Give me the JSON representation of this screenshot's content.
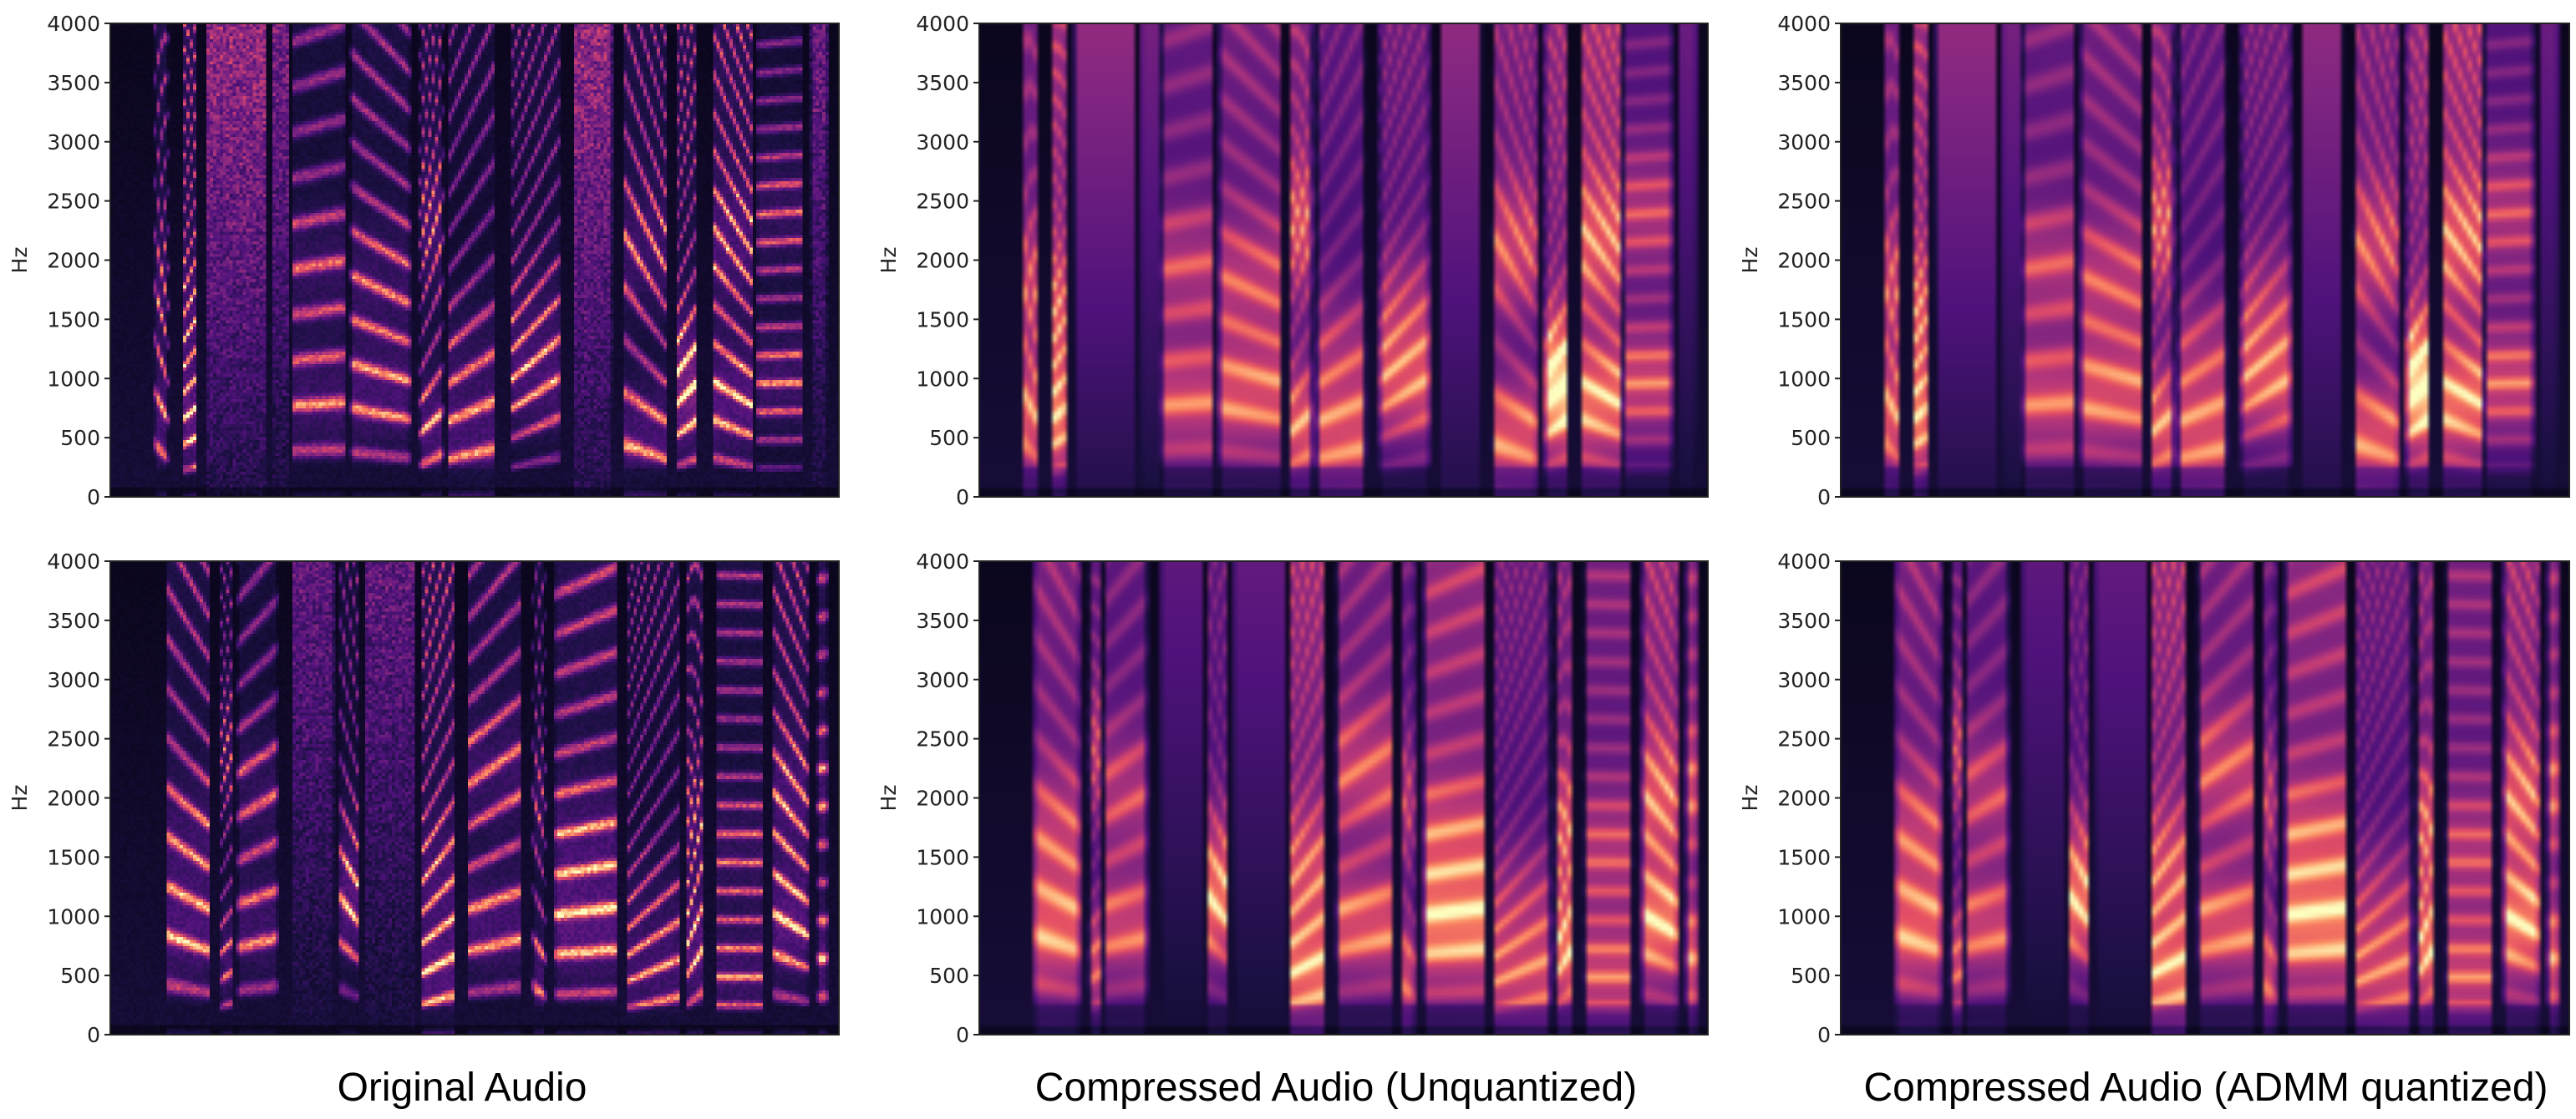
{
  "figure": {
    "columns": [
      "Original Audio",
      "Compressed Audio (Unquantized)",
      "Compressed Audio (ADMM quantized)"
    ]
  },
  "colormap": [
    "#000004",
    "#1c1044",
    "#4f127b",
    "#812581",
    "#b5367a",
    "#e55064",
    "#fb8761",
    "#fec287",
    "#fcfdbf"
  ],
  "chart_data": [
    {
      "type": "heatmap",
      "title": "",
      "xlabel": "",
      "ylabel": "Hz",
      "ylim": [
        0,
        4000
      ],
      "yticks": [
        0,
        500,
        1000,
        1500,
        2000,
        2500,
        3000,
        3500,
        4000
      ],
      "utterance": 1,
      "column": "Original Audio",
      "style": "sharp"
    },
    {
      "type": "heatmap",
      "title": "",
      "xlabel": "",
      "ylabel": "Hz",
      "ylim": [
        0,
        4000
      ],
      "yticks": [
        0,
        500,
        1000,
        1500,
        2000,
        2500,
        3000,
        3500,
        4000
      ],
      "utterance": 1,
      "column": "Compressed Audio (Unquantized)",
      "style": "smooth"
    },
    {
      "type": "heatmap",
      "title": "",
      "xlabel": "",
      "ylabel": "Hz",
      "ylim": [
        0,
        4000
      ],
      "yticks": [
        0,
        500,
        1000,
        1500,
        2000,
        2500,
        3000,
        3500,
        4000
      ],
      "utterance": 1,
      "column": "Compressed Audio (ADMM quantized)",
      "style": "smooth"
    },
    {
      "type": "heatmap",
      "title": "",
      "xlabel": "",
      "ylabel": "Hz",
      "ylim": [
        0,
        4000
      ],
      "yticks": [
        0,
        500,
        1000,
        1500,
        2000,
        2500,
        3000,
        3500,
        4000
      ],
      "utterance": 2,
      "column": "Original Audio",
      "style": "sharp"
    },
    {
      "type": "heatmap",
      "title": "",
      "xlabel": "",
      "ylabel": "Hz",
      "ylim": [
        0,
        4000
      ],
      "yticks": [
        0,
        500,
        1000,
        1500,
        2000,
        2500,
        3000,
        3500,
        4000
      ],
      "utterance": 2,
      "column": "Compressed Audio (Unquantized)",
      "style": "smooth"
    },
    {
      "type": "heatmap",
      "title": "",
      "xlabel": "",
      "ylabel": "Hz",
      "ylim": [
        0,
        4000
      ],
      "yticks": [
        0,
        500,
        1000,
        1500,
        2000,
        2500,
        3000,
        3500,
        4000
      ],
      "utterance": 2,
      "column": "Compressed Audio (ADMM quantized)",
      "style": "smooth"
    }
  ]
}
